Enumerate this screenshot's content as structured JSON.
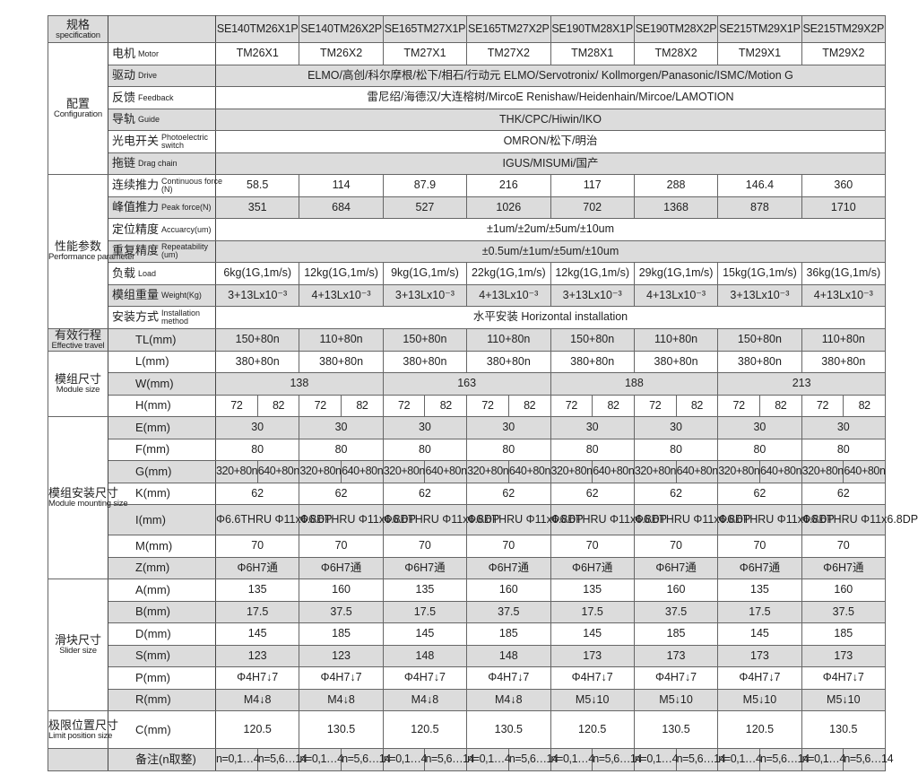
{
  "colors": {
    "header_shade": "#dcdcdc",
    "border": "#666666",
    "text": "#222222"
  },
  "header": {
    "label_cn": "规格",
    "label_en": "specification",
    "models": [
      "SE140TM26X1P",
      "SE140TM26X2P",
      "SE165TM27X1P",
      "SE165TM27X2P",
      "SE190TM28X1P",
      "SE190TM28X2P",
      "SE215TM29X1P",
      "SE215TM29X2P"
    ]
  },
  "groups": [
    {
      "label_cn": "配置",
      "label_en": "Configuration",
      "rows": [
        {
          "cn": "电机",
          "en": "Motor",
          "shaded": false,
          "values": [
            "TM26X1",
            "TM26X2",
            "TM27X1",
            "TM27X2",
            "TM28X1",
            "TM28X2",
            "TM29X1",
            "TM29X2"
          ]
        },
        {
          "cn": "驱动",
          "en": "Drive",
          "shaded": true,
          "values": [
            "ELMO/高创/科尔摩根/松下/相石/行动元  ELMO/Servotronix/ Kollmorgen/Panasonic/ISMC/Motion  G"
          ]
        },
        {
          "cn": "反馈",
          "en": "Feedback",
          "shaded": false,
          "values": [
            "雷尼绍/海德汉/大连榕树/MircoE Renishaw/Heidenhain/Mircoe/LAMOTION"
          ]
        },
        {
          "cn": "导轨",
          "en": "Guide",
          "shaded": true,
          "values": [
            "THK/CPC/Hiwin/IKO"
          ]
        },
        {
          "cn": "光电开关",
          "en": "Photoelectric switch",
          "shaded": false,
          "values": [
            "OMRON/松下/明治"
          ]
        },
        {
          "cn": "拖链",
          "en": "Drag chain",
          "shaded": true,
          "values": [
            "IGUS/MISUMi/国产"
          ]
        }
      ]
    },
    {
      "label_cn": "性能参数",
      "label_en": "Performance parameter",
      "rows": [
        {
          "cn": "连续推力",
          "en": "Continuous force (N)",
          "shaded": false,
          "values": [
            "58.5",
            "114",
            "87.9",
            "216",
            "117",
            "288",
            "146.4",
            "360"
          ]
        },
        {
          "cn": "峰值推力",
          "en": "Peak force(N)",
          "shaded": true,
          "values": [
            "351",
            "684",
            "527",
            "1026",
            "702",
            "1368",
            "878",
            "1710"
          ]
        },
        {
          "cn": "定位精度",
          "en": "Accuarcy(um)",
          "shaded": false,
          "values": [
            "±1um/±2um/±5um/±10um"
          ]
        },
        {
          "cn": "重复精度",
          "en": "Repeatability (um)",
          "shaded": true,
          "values": [
            "±0.5um/±1um/±5um/±10um"
          ]
        },
        {
          "cn": "负载",
          "en": "Load",
          "shaded": false,
          "values": [
            "6kg(1G,1m/s)",
            "12kg(1G,1m/s)",
            "9kg(1G,1m/s)",
            "22kg(1G,1m/s)",
            "12kg(1G,1m/s)",
            "29kg(1G,1m/s)",
            "15kg(1G,1m/s)",
            "36kg(1G,1m/s)"
          ]
        },
        {
          "cn": "模组重量",
          "en": "Weight(Kg)",
          "shaded": true,
          "values": [
            "3+13Lx10⁻³",
            "4+13Lx10⁻³",
            "3+13Lx10⁻³",
            "4+13Lx10⁻³",
            "3+13Lx10⁻³",
            "4+13Lx10⁻³",
            "3+13Lx10⁻³",
            "4+13Lx10⁻³"
          ]
        },
        {
          "cn": "安装方式",
          "en": "Installation method",
          "shaded": false,
          "values": [
            "水平安装  Horizontal installation"
          ]
        }
      ]
    },
    {
      "label_cn": "有效行程",
      "label_en": "Effective travel",
      "rows": [
        {
          "cn": "TL(mm)",
          "shaded": true,
          "values": [
            "150+80n",
            "110+80n",
            "150+80n",
            "110+80n",
            "150+80n",
            "110+80n",
            "150+80n",
            "110+80n"
          ]
        }
      ]
    },
    {
      "label_cn": "模组尺寸",
      "label_en": "Module size",
      "rows": [
        {
          "cn": "L(mm)",
          "shaded": false,
          "values": [
            "380+80n",
            "380+80n",
            "380+80n",
            "380+80n",
            "380+80n",
            "380+80n",
            "380+80n",
            "380+80n"
          ]
        },
        {
          "cn": "W(mm)",
          "shaded": true,
          "values": [
            "138",
            "163",
            "188",
            "213"
          ]
        },
        {
          "cn": "H(mm)",
          "shaded": false,
          "values": [
            "72",
            "82",
            "72",
            "82",
            "72",
            "82",
            "72",
            "82",
            "72",
            "82",
            "72",
            "82",
            "72",
            "82",
            "72",
            "82"
          ]
        }
      ]
    },
    {
      "label_cn": "模组安装尺寸",
      "label_en": "Module mounting size",
      "rows": [
        {
          "cn": "E(mm)",
          "shaded": true,
          "values": [
            "30",
            "30",
            "30",
            "30",
            "30",
            "30",
            "30",
            "30"
          ]
        },
        {
          "cn": "F(mm)",
          "shaded": false,
          "values": [
            "80",
            "80",
            "80",
            "80",
            "80",
            "80",
            "80",
            "80"
          ]
        },
        {
          "cn": "G(mm)",
          "shaded": true,
          "values": [
            "320+80n",
            "640+80n",
            "320+80n",
            "640+80n",
            "320+80n",
            "640+80n",
            "320+80n",
            "640+80n",
            "320+80n",
            "640+80n",
            "320+80n",
            "640+80n",
            "320+80n",
            "640+80n",
            "320+80n",
            "640+80n"
          ]
        },
        {
          "cn": "K(mm)",
          "shaded": false,
          "values": [
            "62",
            "62",
            "62",
            "62",
            "62",
            "62",
            "62",
            "62"
          ]
        },
        {
          "cn": "I(mm)",
          "shaded": true,
          "values": [
            "Φ6.6THRU\nΦ11x6.8DP",
            "Φ6.6THRU\nΦ11x6.8DP",
            "Φ6.6THRU\nΦ11x6.8DP",
            "Φ6.6THRU\nΦ11x6.8DP",
            "Φ6.6THRU\nΦ11x6.8DP",
            "Φ6.6THRU\nΦ11x6.8DP",
            "Φ6.6THRU\nΦ11x6.8DP",
            "Φ6.6THRU\nΦ11x6.8DP"
          ]
        },
        {
          "cn": "M(mm)",
          "shaded": false,
          "values": [
            "70",
            "70",
            "70",
            "70",
            "70",
            "70",
            "70",
            "70"
          ]
        },
        {
          "cn": "Z(mm)",
          "shaded": true,
          "values": [
            "Φ6H7通",
            "Φ6H7通",
            "Φ6H7通",
            "Φ6H7通",
            "Φ6H7通",
            "Φ6H7通",
            "Φ6H7通",
            "Φ6H7通"
          ]
        }
      ]
    },
    {
      "label_cn": "滑块尺寸",
      "label_en": "Slider size",
      "rows": [
        {
          "cn": "A(mm)",
          "shaded": false,
          "values": [
            "135",
            "160",
            "135",
            "160",
            "135",
            "160",
            "135",
            "160"
          ]
        },
        {
          "cn": "B(mm)",
          "shaded": true,
          "values": [
            "17.5",
            "37.5",
            "17.5",
            "37.5",
            "17.5",
            "37.5",
            "17.5",
            "37.5"
          ]
        },
        {
          "cn": "D(mm)",
          "shaded": false,
          "values": [
            "145",
            "185",
            "145",
            "185",
            "145",
            "185",
            "145",
            "185"
          ]
        },
        {
          "cn": "S(mm)",
          "shaded": true,
          "values": [
            "123",
            "123",
            "148",
            "148",
            "173",
            "173",
            "173",
            "173"
          ]
        },
        {
          "cn": "P(mm)",
          "shaded": false,
          "values": [
            "Φ4H7↓7",
            "Φ4H7↓7",
            "Φ4H7↓7",
            "Φ4H7↓7",
            "Φ4H7↓7",
            "Φ4H7↓7",
            "Φ4H7↓7",
            "Φ4H7↓7"
          ]
        },
        {
          "cn": "R(mm)",
          "shaded": true,
          "values": [
            "M4↓8",
            "M4↓8",
            "M4↓8",
            "M4↓8",
            "M5↓10",
            "M5↓10",
            "M5↓10",
            "M5↓10"
          ]
        }
      ]
    },
    {
      "label_cn": "极限位置尺寸",
      "label_en": "Limit position size",
      "rows": [
        {
          "cn": "C(mm)",
          "shaded": false,
          "values": [
            "120.5",
            "130.5",
            "120.5",
            "130.5",
            "120.5",
            "130.5",
            "120.5",
            "130.5"
          ]
        }
      ]
    },
    {
      "label_cn": "",
      "label_en": "",
      "rows": [
        {
          "cn": "备注(n取整)",
          "shaded": true,
          "values": [
            "n=0,1…4",
            "n=5,6…14",
            "n=0,1…4",
            "n=5,6…14",
            "n=0,1…4",
            "n=5,6…14",
            "n=0,1…4",
            "n=5,6…14",
            "n=0,1…4",
            "n=5,6…14",
            "n=0,1…4",
            "n=5,6…14",
            "n=0,1…4",
            "n=5,6…14",
            "n=0,1…4",
            "n=5,6…14"
          ]
        }
      ]
    }
  ]
}
